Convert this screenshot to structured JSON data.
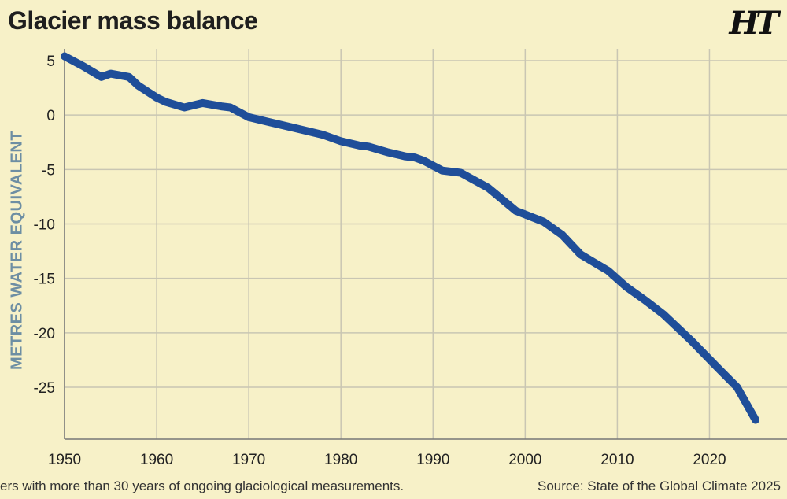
{
  "chart_data": {
    "type": "line",
    "title": "Glacier mass balance",
    "ylabel": "METRES WATER EQUIVALENT",
    "xlabel": "",
    "xlim": [
      1950,
      2025
    ],
    "ylim": [
      -30,
      5.5
    ],
    "x_ticks": [
      1950,
      1960,
      1970,
      1980,
      1990,
      2000,
      2010,
      2020
    ],
    "y_ticks": [
      5,
      0,
      -5,
      -10,
      -15,
      -20,
      -25
    ],
    "grid": true,
    "series": [
      {
        "color": "#1f4e99",
        "x": [
          1950,
          1952,
          1954,
          1955,
          1957,
          1958,
          1960,
          1961,
          1963,
          1965,
          1967,
          1968,
          1970,
          1972,
          1975,
          1978,
          1980,
          1982,
          1983,
          1985,
          1987,
          1988,
          1989,
          1991,
          1993,
          1996,
          1999,
          2002,
          2004,
          2006,
          2009,
          2011,
          2013,
          2015,
          2018,
          2021,
          2023,
          2025
        ],
        "y": [
          5.4,
          4.5,
          3.5,
          3.8,
          3.5,
          2.7,
          1.6,
          1.2,
          0.7,
          1.1,
          0.8,
          0.7,
          -0.2,
          -0.6,
          -1.2,
          -1.8,
          -2.4,
          -2.8,
          -2.9,
          -3.4,
          -3.8,
          -3.9,
          -4.2,
          -5.1,
          -5.3,
          -6.7,
          -8.8,
          -9.8,
          -11.0,
          -12.8,
          -14.3,
          -15.8,
          -17.0,
          -18.3,
          -20.7,
          -23.3,
          -25.0,
          -28.0
        ]
      }
    ]
  },
  "footnote": "ers with more than 30 years of ongoing glaciological measurements.",
  "source": "Source: State of the Global Climate 2025",
  "logo": "HT"
}
